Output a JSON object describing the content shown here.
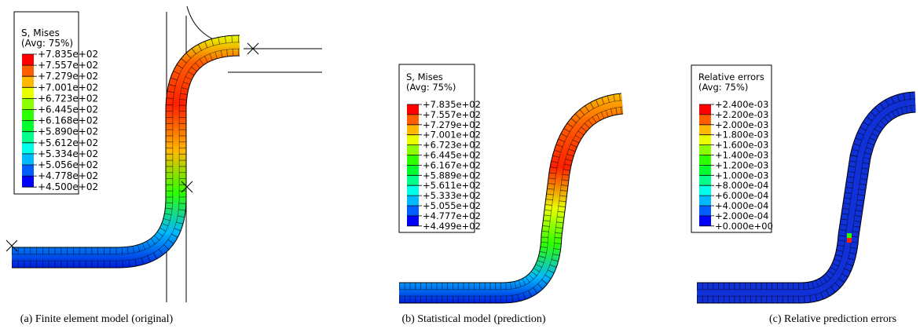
{
  "panels": [
    {
      "legend": {
        "title": "S, Mises",
        "subtitle": "(Avg: 75%)",
        "labels": [
          "+7.835e+02",
          "+7.557e+02",
          "+7.279e+02",
          "+7.001e+02",
          "+6.723e+02",
          "+6.445e+02",
          "+6.168e+02",
          "+5.890e+02",
          "+5.612e+02",
          "+5.334e+02",
          "+5.056e+02",
          "+4.778e+02",
          "+4.500e+02"
        ]
      },
      "caption": "(a) Finite element model (original)"
    },
    {
      "legend": {
        "title": "S, Mises",
        "subtitle": "(Avg: 75%)",
        "labels": [
          "+7.835e+02",
          "+7.557e+02",
          "+7.279e+02",
          "+7.001e+02",
          "+6.723e+02",
          "+6.445e+02",
          "+6.167e+02",
          "+5.889e+02",
          "+5.611e+02",
          "+5.333e+02",
          "+5.055e+02",
          "+4.777e+02",
          "+4.499e+02"
        ]
      },
      "caption": "(b) Statistical model (prediction)"
    },
    {
      "legend": {
        "title": "Relative errors",
        "subtitle": "(Avg: 75%)",
        "labels": [
          "+2.400e-03",
          "+2.200e-03",
          "+2.000e-03",
          "+1.800e-03",
          "+1.600e-03",
          "+1.400e-03",
          "+1.200e-03",
          "+1.000e-03",
          "+8.000e-04",
          "+6.000e-04",
          "+4.000e-04",
          "+2.000e-04",
          "+0.000e+00"
        ]
      },
      "caption": "(c) Relative prediction errors"
    }
  ],
  "legend_colors": [
    "#ff0000",
    "#ff5d00",
    "#ffb900",
    "#e8ff00",
    "#8bff00",
    "#2eff00",
    "#00ff2e",
    "#00ff8b",
    "#00ffe8",
    "#00b9ff",
    "#005dff",
    "#0000ff"
  ]
}
